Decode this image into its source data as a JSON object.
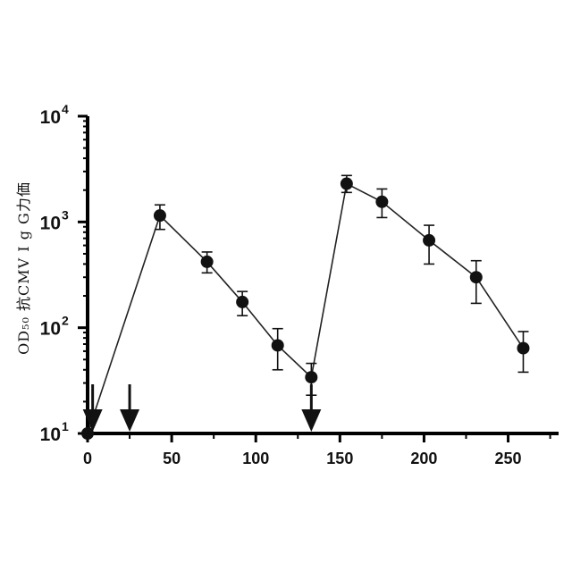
{
  "chart_data": {
    "type": "line",
    "title": "",
    "xlabel": "",
    "ylabel": "OD₅₀ 抗CMV I g G力価",
    "y_scale": "log",
    "xlim": [
      0,
      280
    ],
    "ylim": [
      10,
      10000
    ],
    "x_ticks": [
      0,
      50,
      100,
      150,
      200,
      250
    ],
    "x_tick_labels": [
      "0",
      "50",
      "100",
      "150",
      "200",
      "250"
    ],
    "y_ticks": [
      10,
      100,
      1000,
      10000
    ],
    "y_tick_labels": [
      {
        "base": "10",
        "exp": "1"
      },
      {
        "base": "10",
        "exp": "2"
      },
      {
        "base": "10",
        "exp": "3"
      },
      {
        "base": "10",
        "exp": "4"
      }
    ],
    "grid": false,
    "series": [
      {
        "x": [
          0,
          43,
          71,
          92,
          113,
          133,
          154,
          175,
          203,
          231,
          259
        ],
        "y": [
          10,
          1150,
          420,
          175,
          68,
          34,
          2300,
          1550,
          670,
          300,
          64
        ],
        "err_low": [
          0,
          850,
          330,
          130,
          40,
          23,
          1900,
          1100,
          400,
          170,
          38
        ],
        "err_high": [
          0,
          1450,
          520,
          220,
          98,
          46,
          2750,
          2050,
          930,
          430,
          92
        ]
      }
    ],
    "annotations": {
      "arrows_x": [
        3,
        25,
        133
      ]
    },
    "colors": {
      "line": "#222222",
      "marker": "#111111",
      "axis": "#000000"
    }
  }
}
